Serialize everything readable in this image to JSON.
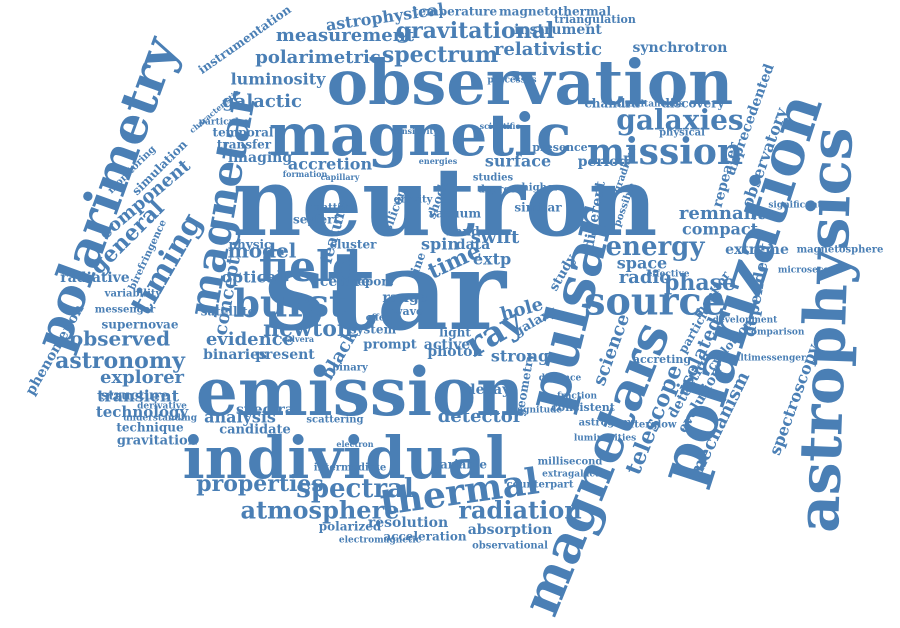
{
  "accent_color": "#4a7fb5",
  "words": [
    {
      "text": "neutron"
    },
    {
      "text": "star"
    },
    {
      "text": "emission"
    },
    {
      "text": "observation"
    },
    {
      "text": "magnetic"
    },
    {
      "text": "individual"
    },
    {
      "text": "polarization"
    },
    {
      "text": "astrophysics"
    },
    {
      "text": "magnetars"
    },
    {
      "text": "pulsar"
    },
    {
      "text": "polarimetry"
    },
    {
      "text": "magnetar"
    },
    {
      "text": "field"
    },
    {
      "text": "burst"
    },
    {
      "text": "source"
    },
    {
      "text": "mission"
    },
    {
      "text": "galaxies"
    },
    {
      "text": "thermal"
    },
    {
      "text": "spectral"
    },
    {
      "text": "atmosphere"
    },
    {
      "text": "radiation"
    },
    {
      "text": "properties"
    },
    {
      "text": "energy"
    },
    {
      "text": "ray"
    },
    {
      "text": "timing"
    },
    {
      "text": "gravitational"
    },
    {
      "text": "spectrum"
    },
    {
      "text": "measurement"
    },
    {
      "text": "relativistic"
    },
    {
      "text": "polarimetric"
    },
    {
      "text": "luminosity"
    },
    {
      "text": "galactic"
    },
    {
      "text": "accretion"
    },
    {
      "text": "surface"
    },
    {
      "text": "period"
    },
    {
      "text": "newton"
    },
    {
      "text": "astronomy"
    },
    {
      "text": "observed"
    },
    {
      "text": "evidence"
    },
    {
      "text": "model"
    },
    {
      "text": "optical"
    },
    {
      "text": "detector"
    },
    {
      "text": "telescope"
    },
    {
      "text": "mechanism"
    },
    {
      "text": "science"
    },
    {
      "text": "radio"
    },
    {
      "text": "phase"
    },
    {
      "text": "space"
    },
    {
      "text": "compact"
    },
    {
      "text": "remnant"
    },
    {
      "text": "hole"
    },
    {
      "text": "black"
    },
    {
      "text": "strong"
    },
    {
      "text": "time"
    },
    {
      "text": "swift"
    },
    {
      "text": "spin"
    },
    {
      "text": "general"
    },
    {
      "text": "component"
    },
    {
      "text": "simulation"
    },
    {
      "text": "monitoring"
    },
    {
      "text": "radiative"
    },
    {
      "text": "phenomenon"
    },
    {
      "text": "explorer"
    },
    {
      "text": "transient"
    },
    {
      "text": "technology"
    },
    {
      "text": "technique"
    },
    {
      "text": "gravitation"
    },
    {
      "text": "analysis"
    },
    {
      "text": "binaries"
    },
    {
      "text": "present"
    },
    {
      "text": "satellite"
    },
    {
      "text": "concept"
    },
    {
      "text": "physic"
    },
    {
      "text": "feature"
    },
    {
      "text": "matter"
    },
    {
      "text": "imaging"
    },
    {
      "text": "temporal"
    },
    {
      "text": "transfer"
    },
    {
      "text": "photon"
    },
    {
      "text": "decay"
    },
    {
      "text": "extp"
    },
    {
      "text": "data"
    },
    {
      "text": "shock"
    },
    {
      "text": "silicon"
    },
    {
      "text": "resolution"
    },
    {
      "text": "absorption"
    },
    {
      "text": "acceleration"
    },
    {
      "text": "observational"
    },
    {
      "text": "electromagnetic"
    },
    {
      "text": "polarized"
    },
    {
      "text": "intermediate"
    },
    {
      "text": "spectra"
    },
    {
      "text": "candidate"
    },
    {
      "text": "scattering"
    },
    {
      "text": "variable"
    },
    {
      "text": "counterpart"
    },
    {
      "text": "millisecond"
    },
    {
      "text": "extragalactic"
    },
    {
      "text": "afterglow"
    },
    {
      "text": "consistent"
    },
    {
      "text": "astrogam"
    },
    {
      "text": "isolated"
    },
    {
      "text": "detection"
    },
    {
      "text": "evolution"
    },
    {
      "text": "particle"
    },
    {
      "text": "accreting"
    },
    {
      "text": "monitor"
    },
    {
      "text": "spectroscopy"
    },
    {
      "text": "cyclotron"
    },
    {
      "text": "multimessenger"
    },
    {
      "text": "development"
    },
    {
      "text": "extreme"
    },
    {
      "text": "dependent"
    },
    {
      "text": "microsecond"
    },
    {
      "text": "magnetosphere"
    },
    {
      "text": "observatory"
    },
    {
      "text": "unprecedented"
    },
    {
      "text": "repeater"
    },
    {
      "text": "discovery"
    },
    {
      "text": "chandra"
    },
    {
      "text": "simultaneous"
    },
    {
      "text": "physical"
    },
    {
      "text": "synchrotron"
    },
    {
      "text": "instrument"
    },
    {
      "text": "triangulation"
    },
    {
      "text": "magnetothermal"
    },
    {
      "text": "temperature"
    },
    {
      "text": "astrophysical"
    },
    {
      "text": "instrumentation"
    },
    {
      "text": "significant"
    },
    {
      "text": "supernovae"
    },
    {
      "text": "messenger"
    },
    {
      "text": "variability"
    },
    {
      "text": "understanding"
    },
    {
      "text": "derivative"
    },
    {
      "text": "structure"
    },
    {
      "text": "birefringence"
    },
    {
      "text": "cluster"
    },
    {
      "text": "centre"
    },
    {
      "text": "seyfert"
    },
    {
      "text": "range"
    },
    {
      "text": "report"
    },
    {
      "text": "system"
    },
    {
      "text": "prompt"
    },
    {
      "text": "active"
    },
    {
      "text": "light"
    },
    {
      "text": "galaxy"
    },
    {
      "text": "study"
    },
    {
      "text": "geometry"
    },
    {
      "text": "line"
    },
    {
      "text": "wave"
    },
    {
      "text": "band"
    },
    {
      "text": "similar"
    },
    {
      "text": "higher"
    },
    {
      "text": "studies"
    },
    {
      "text": "degree"
    },
    {
      "text": "different"
    },
    {
      "text": "possible"
    },
    {
      "text": "presence"
    },
    {
      "text": "scientific"
    },
    {
      "text": "energies"
    },
    {
      "text": "sensitivity"
    },
    {
      "text": "characteristic"
    },
    {
      "text": "particular"
    },
    {
      "text": "processes"
    },
    {
      "text": "binary"
    },
    {
      "text": "fraction"
    },
    {
      "text": "distance"
    },
    {
      "text": "magnitude"
    },
    {
      "text": "luminosities"
    },
    {
      "text": "effective"
    },
    {
      "text": "comparison"
    },
    {
      "text": "vacuum"
    },
    {
      "text": "gravity"
    },
    {
      "text": "formation"
    },
    {
      "text": "capillary"
    },
    {
      "text": "calvera"
    },
    {
      "text": "effect"
    },
    {
      "text": "electron"
    },
    {
      "text": "gradient"
    }
  ]
}
